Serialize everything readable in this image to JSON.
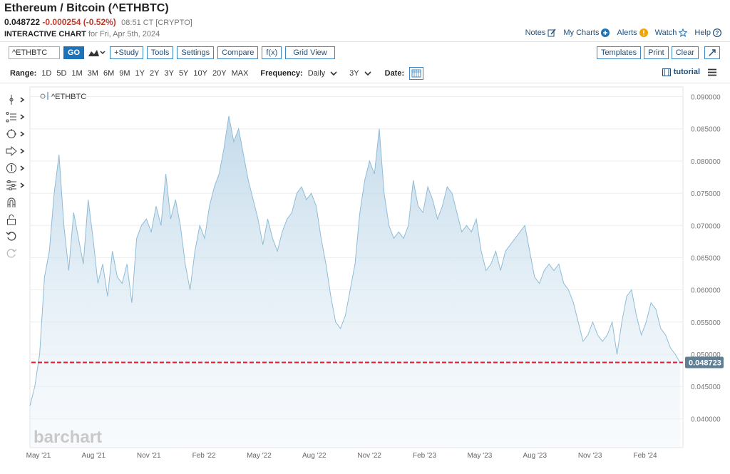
{
  "header": {
    "title": "Ethereum / Bitcoin (^ETHBTC)",
    "last": "0.048722",
    "change": "-0.000254 (-0.52%)",
    "time": "08:51 CT [CRYPTO]",
    "subtitle_bold": "INTERACTIVE CHART",
    "subtitle_rest": "for Fri, Apr 5th, 2024"
  },
  "toplinks": {
    "notes": "Notes",
    "mycharts": "My Charts",
    "alerts": "Alerts",
    "watch": "Watch",
    "help": "Help"
  },
  "toolbar": {
    "symbol": "^ETHBTC",
    "go": "GO",
    "study": "+Study",
    "tools": "Tools",
    "settings": "Settings",
    "compare": "Compare",
    "fx": "f(x)",
    "gridview": "Grid View",
    "templates": "Templates",
    "print": "Print",
    "clear": "Clear"
  },
  "range": {
    "label": "Range:",
    "options": [
      "1D",
      "5D",
      "1M",
      "3M",
      "6M",
      "9M",
      "1Y",
      "2Y",
      "3Y",
      "5Y",
      "10Y",
      "20Y",
      "MAX"
    ],
    "frequency_label": "Frequency:",
    "frequency": "Daily",
    "period": "3Y",
    "date_label": "Date:",
    "tutorial": "tutorial"
  },
  "colors": {
    "accent": "#1e72b8",
    "area_line": "#8fbcd6",
    "area_fill_top": "#bcd6e8",
    "ref_line": "#d6202d",
    "last_badge": "#5f7f95"
  },
  "chart_data": {
    "type": "area",
    "legend": "^ETHBTC",
    "watermark": "barchart",
    "ylim": [
      0.0355,
      0.0915
    ],
    "y_ticks": [
      "0.090000",
      "0.085000",
      "0.080000",
      "0.075000",
      "0.070000",
      "0.065000",
      "0.060000",
      "0.055000",
      "0.050000",
      "0.045000",
      "0.040000"
    ],
    "x_ticks": [
      "May '21",
      "Aug '21",
      "Nov '21",
      "Feb '22",
      "May '22",
      "Aug '22",
      "Nov '22",
      "Feb '23",
      "May '23",
      "Aug '23",
      "Nov '23",
      "Feb '24"
    ],
    "last_value": 0.048723,
    "last_label": "0.048723",
    "series": [
      {
        "values": [
          0.042,
          0.045,
          0.05,
          0.062,
          0.066,
          0.075,
          0.081,
          0.07,
          0.063,
          0.072,
          0.068,
          0.064,
          0.074,
          0.068,
          0.061,
          0.064,
          0.059,
          0.066,
          0.062,
          0.061,
          0.064,
          0.058,
          0.068,
          0.07,
          0.071,
          0.069,
          0.073,
          0.07,
          0.078,
          0.071,
          0.074,
          0.07,
          0.064,
          0.06,
          0.066,
          0.07,
          0.068,
          0.073,
          0.076,
          0.078,
          0.082,
          0.087,
          0.083,
          0.085,
          0.081,
          0.077,
          0.074,
          0.071,
          0.067,
          0.071,
          0.068,
          0.066,
          0.069,
          0.071,
          0.072,
          0.075,
          0.076,
          0.074,
          0.075,
          0.073,
          0.068,
          0.064,
          0.059,
          0.055,
          0.054,
          0.056,
          0.06,
          0.064,
          0.072,
          0.077,
          0.08,
          0.078,
          0.085,
          0.075,
          0.07,
          0.068,
          0.069,
          0.068,
          0.07,
          0.077,
          0.073,
          0.072,
          0.076,
          0.074,
          0.071,
          0.073,
          0.076,
          0.075,
          0.072,
          0.069,
          0.07,
          0.069,
          0.071,
          0.066,
          0.063,
          0.064,
          0.066,
          0.063,
          0.066,
          0.067,
          0.068,
          0.069,
          0.07,
          0.066,
          0.062,
          0.061,
          0.063,
          0.064,
          0.063,
          0.064,
          0.061,
          0.06,
          0.058,
          0.055,
          0.052,
          0.053,
          0.055,
          0.053,
          0.052,
          0.053,
          0.055,
          0.05,
          0.055,
          0.059,
          0.06,
          0.056,
          0.053,
          0.055,
          0.058,
          0.057,
          0.054,
          0.053,
          0.051,
          0.05,
          0.0487
        ]
      }
    ]
  }
}
